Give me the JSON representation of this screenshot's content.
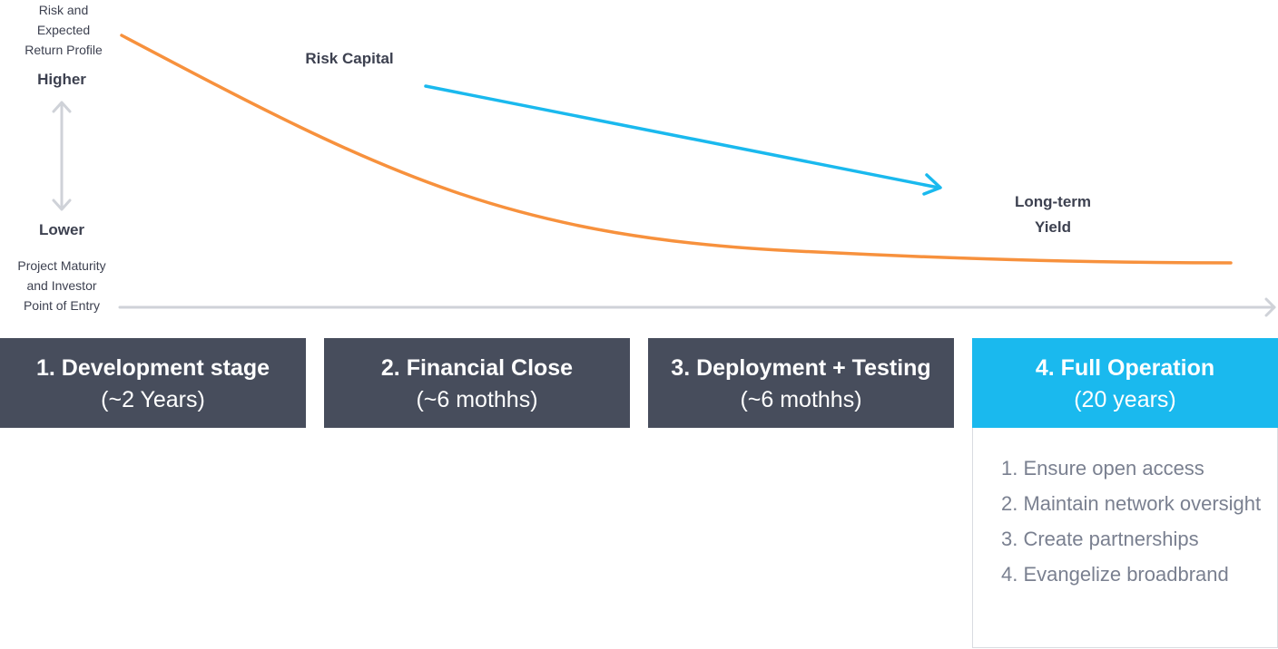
{
  "y_axis": {
    "title": "Risk and\nExpected\nReturn Profile",
    "higher_label": "Higher",
    "lower_label": "Lower"
  },
  "x_axis": {
    "title": "Project Maturity\nand Investor\nPoint of Entry"
  },
  "curve_labels": {
    "risk_capital": "Risk Capital",
    "long_term_yield": "Long-term\nYield"
  },
  "colors": {
    "curve": "#f7913d",
    "arrow": "#1ab9ee",
    "axis": "#cfd2d8",
    "stage_default": "#474d5c",
    "stage_active": "#1ab9ee"
  },
  "stages": [
    {
      "title": "1. Development stage",
      "duration": "(~2 Years)"
    },
    {
      "title": "2. Financial Close",
      "duration": "(~6 mothhs)"
    },
    {
      "title": "3. Deployment + Testing",
      "duration": "(~6 mothhs)"
    },
    {
      "title": "4. Full Operation",
      "duration": "(20 years)"
    }
  ],
  "full_operation_tasks": [
    "1. Ensure open access",
    "2. Maintain network oversight",
    "3. Create partnerships",
    "4. Evangelize broadbrand"
  ]
}
